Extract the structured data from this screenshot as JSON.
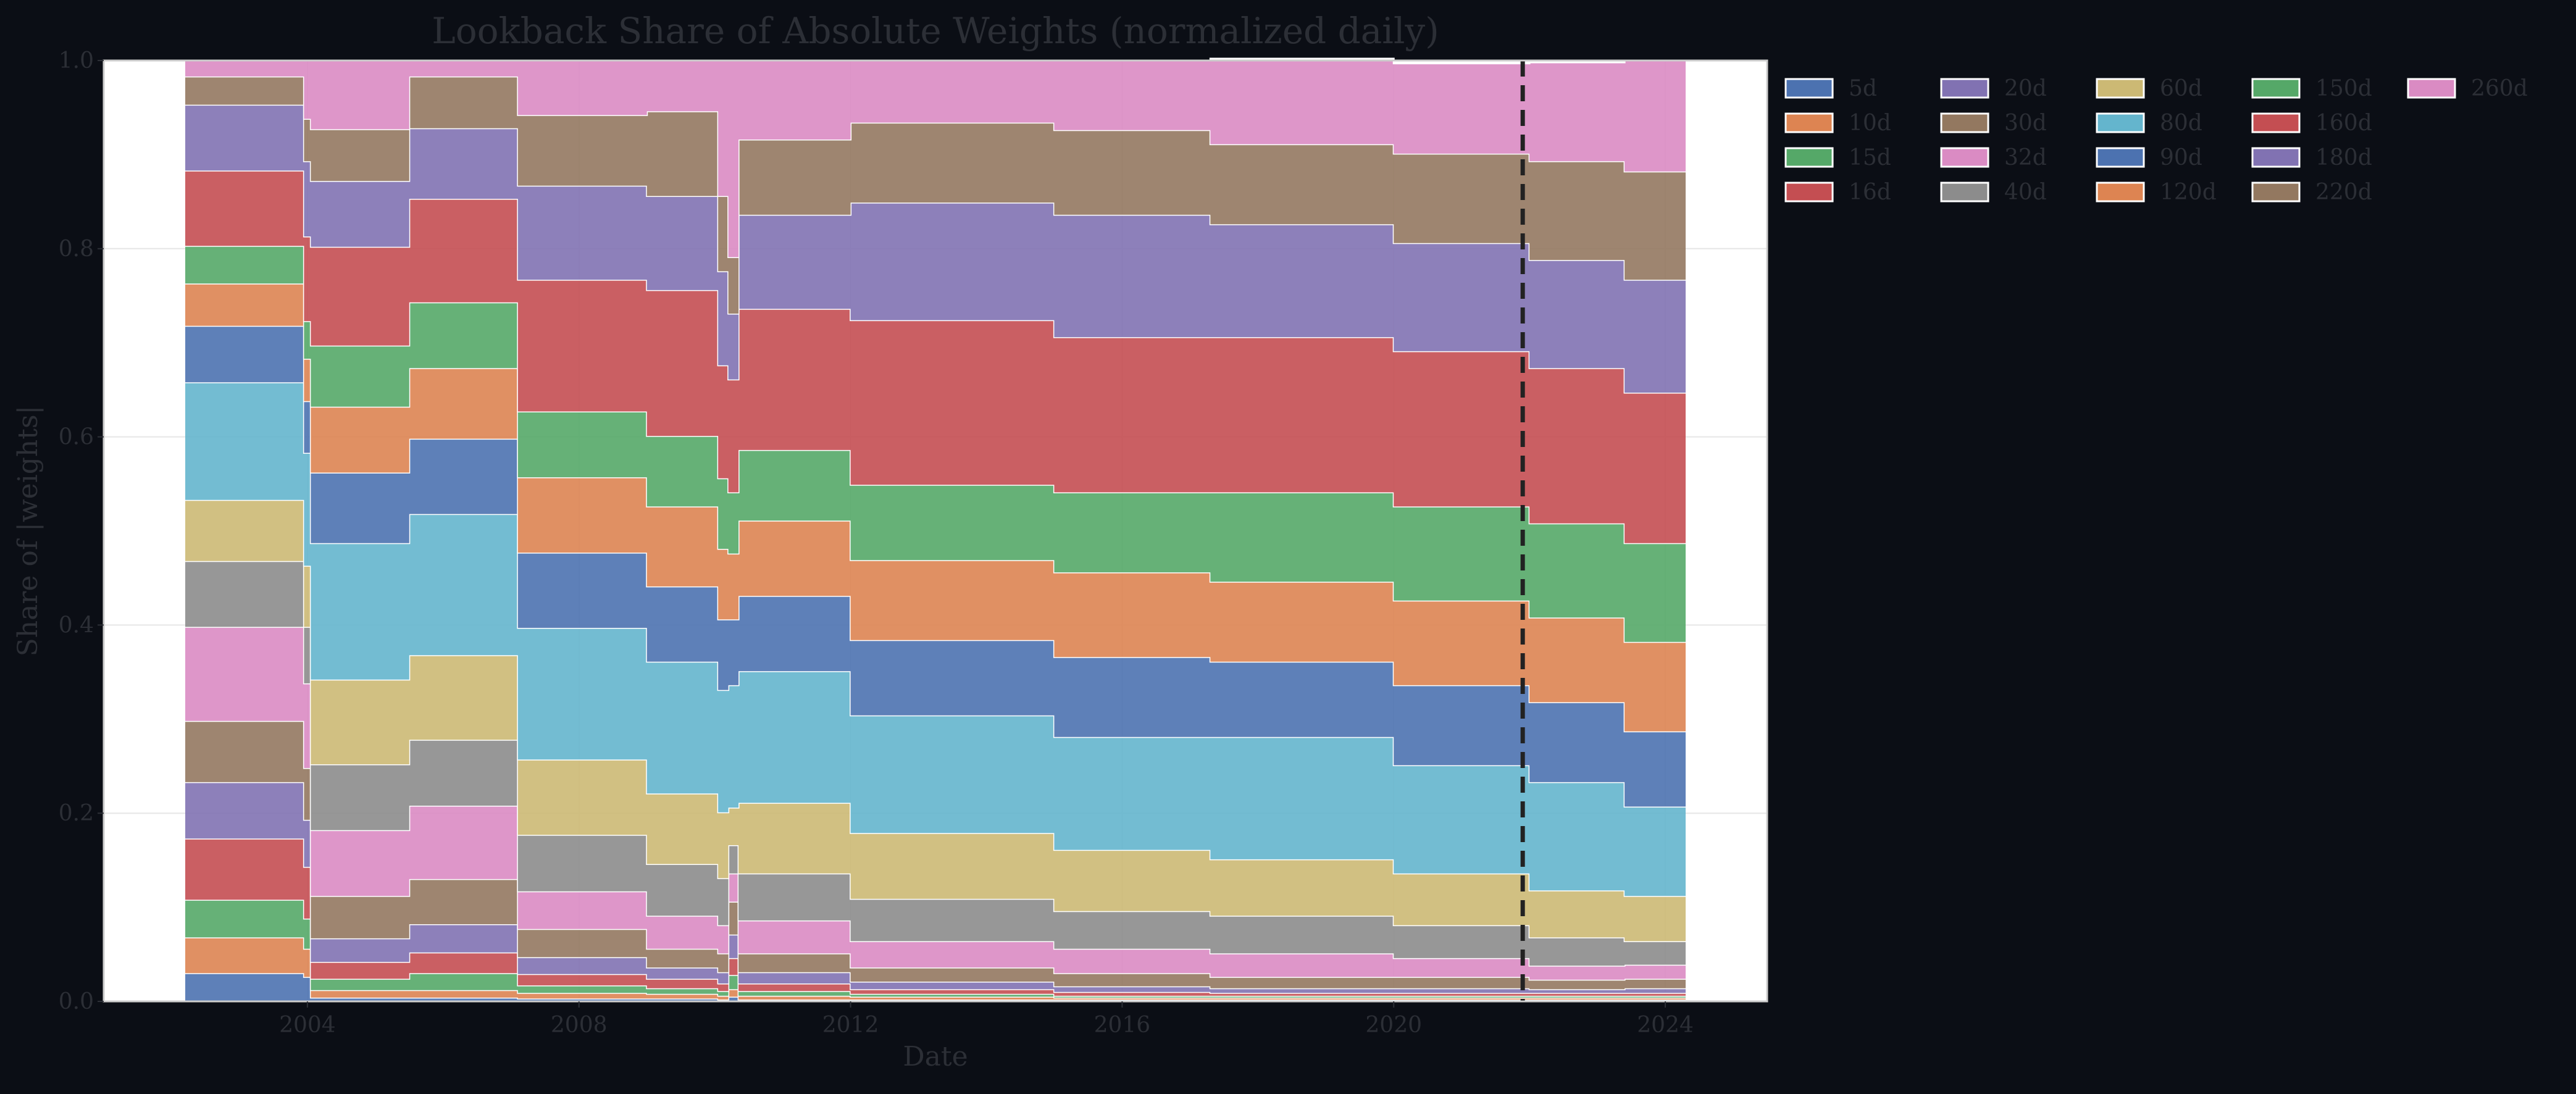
{
  "colors": {
    "background": "#0b0e15",
    "plot_background": "#ffffff",
    "text": "#2c2f36",
    "grid": "#e6e6e6",
    "marker_line": "#222222",
    "series_edge": "#ffffff"
  },
  "chart_data": {
    "type": "area",
    "stacked": true,
    "title": "Lookback Share of Absolute Weights (normalized daily)",
    "xlabel": "Date",
    "ylabel": "Share of |weights|",
    "xlim": [
      2001.0,
      2025.5
    ],
    "ylim": [
      0.0,
      1.0
    ],
    "x_ticks": [
      2004,
      2008,
      2012,
      2016,
      2020,
      2024
    ],
    "y_ticks": [
      0.0,
      0.2,
      0.4,
      0.6,
      0.8,
      1.0
    ],
    "x_tick_labels": [
      "2004",
      "2008",
      "2012",
      "2016",
      "2020",
      "2024"
    ],
    "y_tick_labels": [
      "0.0",
      "0.2",
      "0.4",
      "0.6",
      "0.8",
      "1.0"
    ],
    "grid": true,
    "legend_position": "outside-right-top",
    "legend_columns": 5,
    "vline": {
      "x": 2021.9,
      "style": "dashed"
    },
    "x": [
      2002.2,
      2003.95,
      2004.05,
      2005.5,
      2007.1,
      2009.0,
      2010.05,
      2010.2,
      2010.35,
      2012.0,
      2015.0,
      2015.6,
      2017.3,
      2020.0,
      2022.0,
      2023.4,
      2024.3
    ],
    "series": [
      {
        "name": "5d",
        "color": "#4c72b0",
        "values": [
          0.03,
          0.026,
          0.004,
          0.004,
          0.003,
          0.003,
          0.002,
          0.005,
          0.002,
          0.002,
          0.002,
          0.002,
          0.002,
          0.002,
          0.002,
          0.002,
          0.002
        ]
      },
      {
        "name": "10d",
        "color": "#dd8452",
        "values": [
          0.038,
          0.03,
          0.008,
          0.008,
          0.006,
          0.005,
          0.004,
          0.008,
          0.004,
          0.003,
          0.002,
          0.002,
          0.002,
          0.002,
          0.002,
          0.002,
          0.002
        ]
      },
      {
        "name": "15d",
        "color": "#55a868",
        "values": [
          0.04,
          0.032,
          0.012,
          0.018,
          0.008,
          0.006,
          0.005,
          0.015,
          0.005,
          0.003,
          0.002,
          0.002,
          0.002,
          0.002,
          0.002,
          0.002,
          0.002
        ]
      },
      {
        "name": "16d",
        "color": "#c44e52",
        "values": [
          0.065,
          0.055,
          0.018,
          0.022,
          0.012,
          0.01,
          0.008,
          0.018,
          0.008,
          0.005,
          0.004,
          0.004,
          0.003,
          0.003,
          0.003,
          0.003,
          0.003
        ]
      },
      {
        "name": "20d",
        "color": "#8172b2",
        "values": [
          0.06,
          0.05,
          0.025,
          0.03,
          0.018,
          0.012,
          0.012,
          0.025,
          0.012,
          0.008,
          0.006,
          0.006,
          0.005,
          0.005,
          0.004,
          0.005,
          0.005
        ]
      },
      {
        "name": "30d",
        "color": "#937860",
        "values": [
          0.065,
          0.055,
          0.045,
          0.048,
          0.03,
          0.02,
          0.02,
          0.035,
          0.02,
          0.015,
          0.014,
          0.014,
          0.012,
          0.012,
          0.01,
          0.01,
          0.01
        ]
      },
      {
        "name": "32d",
        "color": "#da8bc3",
        "values": [
          0.1,
          0.09,
          0.07,
          0.078,
          0.04,
          0.035,
          0.03,
          0.03,
          0.035,
          0.028,
          0.026,
          0.026,
          0.025,
          0.02,
          0.015,
          0.015,
          0.015
        ]
      },
      {
        "name": "40d",
        "color": "#8c8c8c",
        "values": [
          0.07,
          0.06,
          0.07,
          0.07,
          0.06,
          0.055,
          0.05,
          0.03,
          0.05,
          0.045,
          0.04,
          0.04,
          0.04,
          0.035,
          0.03,
          0.025,
          0.025
        ]
      },
      {
        "name": "60d",
        "color": "#ccb974",
        "values": [
          0.065,
          0.065,
          0.09,
          0.09,
          0.08,
          0.075,
          0.07,
          0.04,
          0.075,
          0.07,
          0.065,
          0.065,
          0.06,
          0.055,
          0.05,
          0.048,
          0.048
        ]
      },
      {
        "name": "80d",
        "color": "#64b5cd",
        "values": [
          0.125,
          0.12,
          0.145,
          0.15,
          0.14,
          0.14,
          0.13,
          0.13,
          0.14,
          0.125,
          0.12,
          0.12,
          0.13,
          0.115,
          0.115,
          0.095,
          0.095
        ]
      },
      {
        "name": "90d",
        "color": "#4c72b0",
        "values": [
          0.06,
          0.055,
          0.075,
          0.08,
          0.08,
          0.08,
          0.075,
          0.07,
          0.08,
          0.08,
          0.085,
          0.085,
          0.08,
          0.085,
          0.085,
          0.08,
          0.08
        ]
      },
      {
        "name": "120d",
        "color": "#dd8452",
        "values": [
          0.045,
          0.045,
          0.07,
          0.075,
          0.08,
          0.085,
          0.075,
          0.07,
          0.08,
          0.085,
          0.09,
          0.09,
          0.085,
          0.09,
          0.09,
          0.095,
          0.095
        ]
      },
      {
        "name": "150d",
        "color": "#55a868",
        "values": [
          0.04,
          0.04,
          0.065,
          0.07,
          0.07,
          0.075,
          0.075,
          0.065,
          0.075,
          0.08,
          0.085,
          0.085,
          0.095,
          0.1,
          0.1,
          0.105,
          0.105
        ]
      },
      {
        "name": "160d",
        "color": "#c44e52",
        "values": [
          0.08,
          0.09,
          0.105,
          0.11,
          0.14,
          0.155,
          0.12,
          0.12,
          0.15,
          0.175,
          0.165,
          0.165,
          0.165,
          0.165,
          0.165,
          0.16,
          0.16
        ]
      },
      {
        "name": "180d",
        "color": "#8172b2",
        "values": [
          0.07,
          0.08,
          0.07,
          0.075,
          0.1,
          0.1,
          0.1,
          0.07,
          0.1,
          0.125,
          0.13,
          0.13,
          0.12,
          0.115,
          0.115,
          0.12,
          0.12
        ]
      },
      {
        "name": "220d",
        "color": "#937860",
        "values": [
          0.03,
          0.045,
          0.055,
          0.055,
          0.075,
          0.09,
          0.08,
          0.06,
          0.08,
          0.085,
          0.09,
          0.09,
          0.085,
          0.095,
          0.105,
          0.115,
          0.12
        ]
      },
      {
        "name": "260d",
        "color": "#da8bc3",
        "values": [
          0.017,
          0.062,
          0.073,
          0.017,
          0.058,
          0.054,
          0.144,
          0.209,
          0.084,
          0.066,
          0.074,
          0.074,
          0.091,
          0.096,
          0.105,
          0.118,
          0.113
        ]
      }
    ]
  }
}
